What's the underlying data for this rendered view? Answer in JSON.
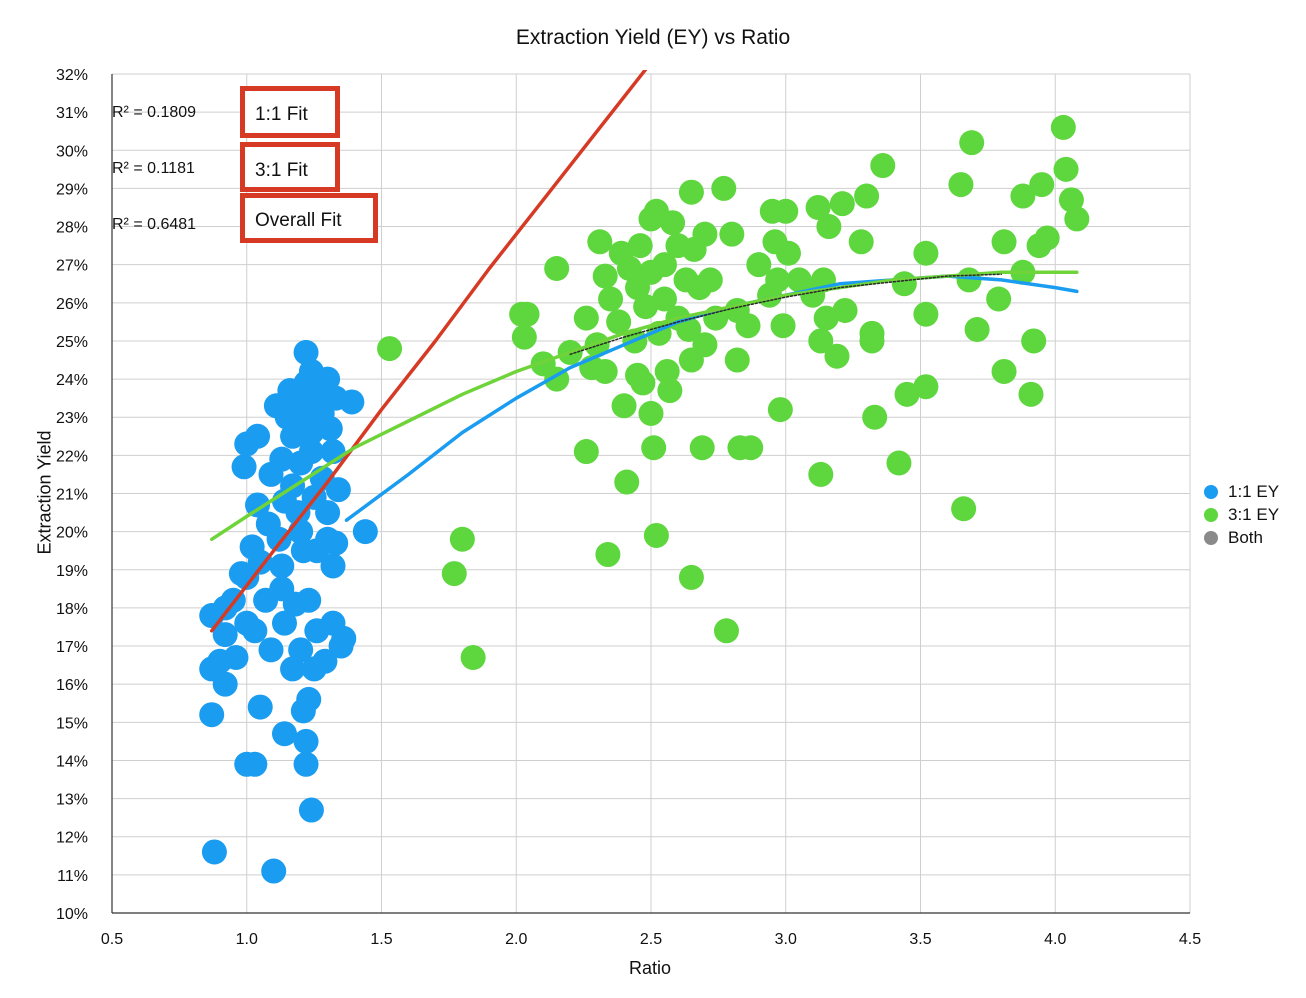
{
  "chart_data": {
    "type": "scatter",
    "title": "Extraction Yield (EY) vs Ratio",
    "xlabel": "Ratio",
    "ylabel": "Extraction Yield",
    "xlim": [
      0.5,
      4.5
    ],
    "ylim": [
      10,
      32
    ],
    "xticks": [
      "0.5",
      "1.0",
      "1.5",
      "2.0",
      "2.5",
      "3.0",
      "3.5",
      "4.0",
      "4.5"
    ],
    "yticks": [
      "10%",
      "11%",
      "12%",
      "13%",
      "14%",
      "15%",
      "16%",
      "17%",
      "18%",
      "19%",
      "20%",
      "21%",
      "22%",
      "23%",
      "24%",
      "25%",
      "26%",
      "27%",
      "28%",
      "29%",
      "30%",
      "31%",
      "32%"
    ],
    "grid": true,
    "legend_position": "right",
    "annotations": {
      "r2": [
        "R² = 0.1809",
        "R² = 0.1181",
        "R² = 0.6481"
      ],
      "fits": [
        "1:1 Fit",
        "3:1 Fit",
        "Overall Fit"
      ]
    },
    "series": [
      {
        "name": "1:1 EY",
        "color": "#1a9cf0",
        "points": [
          [
            0.88,
            11.6
          ],
          [
            1.1,
            11.1
          ],
          [
            1.24,
            12.7
          ],
          [
            1.22,
            13.9
          ],
          [
            1.0,
            13.9
          ],
          [
            1.03,
            13.9
          ],
          [
            1.22,
            14.5
          ],
          [
            1.14,
            14.7
          ],
          [
            0.87,
            15.2
          ],
          [
            1.05,
            15.4
          ],
          [
            1.21,
            15.3
          ],
          [
            1.23,
            15.6
          ],
          [
            0.92,
            16.0
          ],
          [
            0.87,
            16.4
          ],
          [
            0.96,
            16.7
          ],
          [
            0.9,
            16.6
          ],
          [
            1.17,
            16.4
          ],
          [
            1.25,
            16.4
          ],
          [
            1.29,
            16.6
          ],
          [
            1.09,
            16.9
          ],
          [
            1.2,
            16.9
          ],
          [
            0.92,
            17.3
          ],
          [
            1.03,
            17.4
          ],
          [
            1.14,
            17.6
          ],
          [
            1.26,
            17.4
          ],
          [
            1.36,
            17.2
          ],
          [
            1.35,
            17.0
          ],
          [
            1.32,
            17.6
          ],
          [
            1.0,
            17.6
          ],
          [
            0.87,
            17.8
          ],
          [
            0.92,
            18.0
          ],
          [
            0.95,
            18.2
          ],
          [
            1.07,
            18.2
          ],
          [
            1.23,
            18.2
          ],
          [
            1.18,
            18.1
          ],
          [
            1.13,
            18.5
          ],
          [
            1.0,
            18.8
          ],
          [
            0.98,
            18.9
          ],
          [
            1.13,
            19.1
          ],
          [
            1.26,
            19.5
          ],
          [
            1.32,
            19.1
          ],
          [
            1.05,
            19.2
          ],
          [
            1.21,
            19.5
          ],
          [
            1.02,
            19.6
          ],
          [
            1.12,
            19.8
          ],
          [
            1.3,
            19.8
          ],
          [
            1.33,
            19.7
          ],
          [
            1.44,
            20.0
          ],
          [
            1.2,
            20.0
          ],
          [
            1.08,
            20.2
          ],
          [
            1.19,
            20.5
          ],
          [
            1.3,
            20.5
          ],
          [
            1.04,
            20.7
          ],
          [
            1.14,
            20.8
          ],
          [
            1.25,
            20.9
          ],
          [
            1.34,
            21.1
          ],
          [
            1.17,
            21.2
          ],
          [
            1.28,
            21.4
          ],
          [
            1.09,
            21.5
          ],
          [
            0.99,
            21.7
          ],
          [
            1.2,
            21.8
          ],
          [
            1.13,
            21.9
          ],
          [
            1.24,
            22.1
          ],
          [
            1.32,
            22.1
          ],
          [
            1.0,
            22.3
          ],
          [
            1.04,
            22.5
          ],
          [
            1.17,
            22.5
          ],
          [
            1.24,
            22.6
          ],
          [
            1.31,
            22.7
          ],
          [
            1.21,
            22.9
          ],
          [
            1.15,
            23.0
          ],
          [
            1.28,
            23.1
          ],
          [
            1.11,
            23.3
          ],
          [
            1.19,
            23.3
          ],
          [
            1.24,
            23.5
          ],
          [
            1.33,
            23.5
          ],
          [
            1.39,
            23.4
          ],
          [
            1.16,
            23.7
          ],
          [
            1.27,
            23.7
          ],
          [
            1.22,
            23.9
          ],
          [
            1.3,
            24.0
          ],
          [
            1.24,
            24.2
          ],
          [
            1.22,
            24.7
          ]
        ]
      },
      {
        "name": "3:1 EY",
        "color": "#5ed63d",
        "points": [
          [
            1.53,
            24.8
          ],
          [
            1.8,
            19.8
          ],
          [
            1.77,
            18.9
          ],
          [
            1.84,
            16.7
          ],
          [
            2.02,
            25.7
          ],
          [
            2.03,
            25.1
          ],
          [
            2.04,
            25.7
          ],
          [
            2.1,
            24.4
          ],
          [
            2.15,
            26.9
          ],
          [
            2.15,
            24.0
          ],
          [
            2.2,
            24.7
          ],
          [
            2.26,
            22.1
          ],
          [
            2.26,
            25.6
          ],
          [
            2.28,
            24.3
          ],
          [
            2.3,
            24.9
          ],
          [
            2.33,
            24.2
          ],
          [
            2.31,
            27.6
          ],
          [
            2.33,
            26.7
          ],
          [
            2.35,
            26.1
          ],
          [
            2.34,
            19.4
          ],
          [
            2.38,
            25.5
          ],
          [
            2.39,
            27.3
          ],
          [
            2.4,
            23.3
          ],
          [
            2.42,
            26.9
          ],
          [
            2.41,
            21.3
          ],
          [
            2.44,
            25.0
          ],
          [
            2.45,
            24.1
          ],
          [
            2.45,
            26.4
          ],
          [
            2.46,
            27.5
          ],
          [
            2.47,
            23.9
          ],
          [
            2.48,
            25.9
          ],
          [
            2.5,
            28.2
          ],
          [
            2.5,
            26.8
          ],
          [
            2.5,
            23.1
          ],
          [
            2.51,
            22.2
          ],
          [
            2.52,
            19.9
          ],
          [
            2.52,
            28.4
          ],
          [
            2.53,
            25.2
          ],
          [
            2.55,
            27.0
          ],
          [
            2.55,
            26.1
          ],
          [
            2.56,
            24.2
          ],
          [
            2.57,
            23.7
          ],
          [
            2.58,
            28.1
          ],
          [
            2.6,
            27.5
          ],
          [
            2.6,
            25.6
          ],
          [
            2.63,
            26.6
          ],
          [
            2.64,
            25.3
          ],
          [
            2.65,
            24.5
          ],
          [
            2.65,
            28.9
          ],
          [
            2.65,
            18.8
          ],
          [
            2.66,
            27.4
          ],
          [
            2.68,
            26.4
          ],
          [
            2.69,
            22.2
          ],
          [
            2.7,
            24.9
          ],
          [
            2.7,
            27.8
          ],
          [
            2.72,
            26.6
          ],
          [
            2.74,
            25.6
          ],
          [
            2.77,
            29.0
          ],
          [
            2.78,
            17.4
          ],
          [
            2.8,
            27.8
          ],
          [
            2.82,
            24.5
          ],
          [
            2.82,
            25.8
          ],
          [
            2.83,
            22.2
          ],
          [
            2.87,
            22.2
          ],
          [
            2.86,
            25.4
          ],
          [
            2.9,
            27.0
          ],
          [
            2.94,
            26.2
          ],
          [
            2.95,
            28.4
          ],
          [
            2.96,
            27.6
          ],
          [
            2.97,
            26.6
          ],
          [
            2.98,
            23.2
          ],
          [
            2.99,
            25.4
          ],
          [
            3.0,
            28.4
          ],
          [
            3.01,
            27.3
          ],
          [
            3.05,
            26.6
          ],
          [
            3.1,
            26.2
          ],
          [
            3.12,
            28.5
          ],
          [
            3.13,
            25.0
          ],
          [
            3.13,
            21.5
          ],
          [
            3.14,
            26.6
          ],
          [
            3.15,
            25.6
          ],
          [
            3.16,
            28.0
          ],
          [
            3.19,
            24.6
          ],
          [
            3.21,
            28.6
          ],
          [
            3.22,
            25.8
          ],
          [
            3.3,
            28.8
          ],
          [
            3.28,
            27.6
          ],
          [
            3.32,
            25.0
          ],
          [
            3.32,
            25.2
          ],
          [
            3.33,
            23.0
          ],
          [
            3.36,
            29.6
          ],
          [
            3.42,
            21.8
          ],
          [
            3.44,
            26.5
          ],
          [
            3.45,
            23.6
          ],
          [
            3.52,
            23.8
          ],
          [
            3.52,
            27.3
          ],
          [
            3.52,
            25.7
          ],
          [
            3.65,
            29.1
          ],
          [
            3.66,
            20.6
          ],
          [
            3.68,
            26.6
          ],
          [
            3.69,
            30.2
          ],
          [
            3.71,
            25.3
          ],
          [
            3.79,
            26.1
          ],
          [
            3.81,
            27.6
          ],
          [
            3.81,
            24.2
          ],
          [
            3.88,
            28.8
          ],
          [
            3.88,
            26.8
          ],
          [
            3.91,
            23.6
          ],
          [
            3.92,
            25.0
          ],
          [
            3.94,
            27.5
          ],
          [
            3.95,
            29.1
          ],
          [
            3.97,
            27.7
          ],
          [
            4.03,
            30.6
          ],
          [
            4.04,
            29.5
          ],
          [
            4.06,
            28.7
          ],
          [
            4.08,
            28.2
          ]
        ]
      },
      {
        "name": "Both",
        "color": "#8a8a8a",
        "points": []
      }
    ],
    "fit_lines": [
      {
        "name": "1:1 Fit",
        "color": "#d63a25",
        "points": [
          [
            0.87,
            17.4
          ],
          [
            1.1,
            19.5
          ],
          [
            1.3,
            21.3
          ],
          [
            1.5,
            23.2
          ],
          [
            1.7,
            25.0
          ],
          [
            1.9,
            26.9
          ],
          [
            2.1,
            28.7
          ],
          [
            2.3,
            30.5
          ],
          [
            2.5,
            32.3
          ]
        ]
      },
      {
        "name": "3:1 Fit",
        "color": "#1a9cf0",
        "points": [
          [
            1.37,
            20.3
          ],
          [
            1.6,
            21.5
          ],
          [
            1.8,
            22.6
          ],
          [
            2.0,
            23.5
          ],
          [
            2.2,
            24.3
          ],
          [
            2.4,
            24.9
          ],
          [
            2.6,
            25.5
          ],
          [
            2.8,
            25.9
          ],
          [
            3.0,
            26.2
          ],
          [
            3.2,
            26.5
          ],
          [
            3.4,
            26.6
          ],
          [
            3.6,
            26.7
          ],
          [
            3.8,
            26.6
          ],
          [
            4.0,
            26.4
          ],
          [
            4.08,
            26.3
          ]
        ]
      },
      {
        "name": "Overall Fit",
        "color": "#6fd43a",
        "points": [
          [
            0.87,
            19.8
          ],
          [
            1.0,
            20.4
          ],
          [
            1.2,
            21.3
          ],
          [
            1.4,
            22.2
          ],
          [
            1.6,
            22.9
          ],
          [
            1.8,
            23.6
          ],
          [
            2.0,
            24.2
          ],
          [
            2.2,
            24.7
          ],
          [
            2.4,
            25.2
          ],
          [
            2.6,
            25.6
          ],
          [
            2.8,
            25.9
          ],
          [
            3.0,
            26.2
          ],
          [
            3.2,
            26.4
          ],
          [
            3.4,
            26.6
          ],
          [
            3.6,
            26.7
          ],
          [
            3.8,
            26.8
          ],
          [
            4.0,
            26.8
          ],
          [
            4.08,
            26.8
          ]
        ]
      },
      {
        "name": "Both Fit",
        "color": "#2a2a2a",
        "points": [
          [
            2.2,
            24.65
          ],
          [
            2.4,
            25.1
          ],
          [
            2.6,
            25.5
          ],
          [
            2.8,
            25.85
          ],
          [
            3.0,
            26.15
          ],
          [
            3.2,
            26.4
          ],
          [
            3.4,
            26.55
          ],
          [
            3.6,
            26.7
          ],
          [
            3.8,
            26.75
          ]
        ]
      }
    ]
  }
}
